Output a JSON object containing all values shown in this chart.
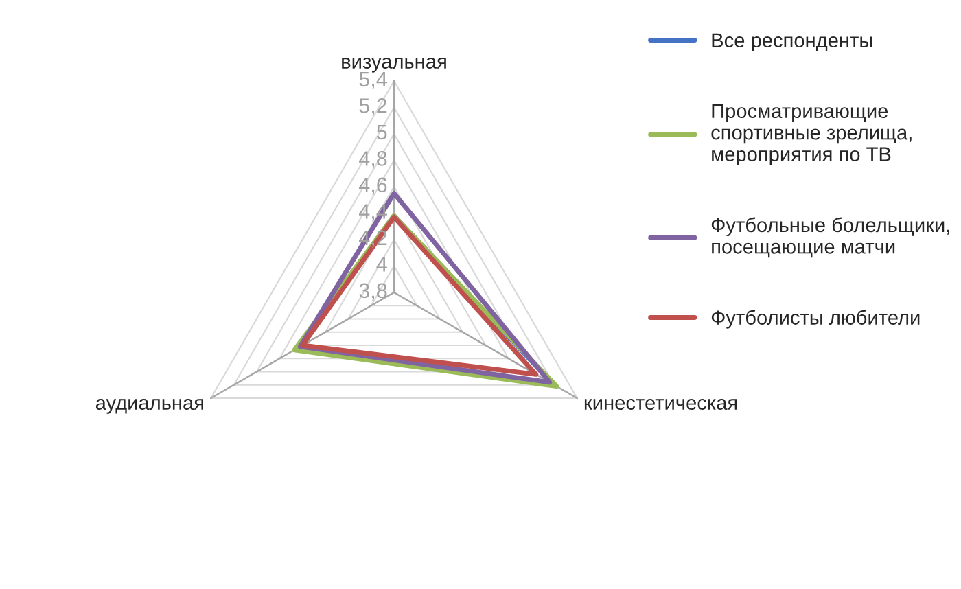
{
  "chart_data": {
    "type": "radar",
    "categories": [
      "визуальная",
      "кинестетическая",
      "аудиальная"
    ],
    "ylim": [
      3.8,
      5.4
    ],
    "yticks": [
      {
        "value": 3.8,
        "label": "3,8"
      },
      {
        "value": 4.0,
        "label": "4"
      },
      {
        "value": 4.2,
        "label": "4,2"
      },
      {
        "value": 4.4,
        "label": "4,4"
      },
      {
        "value": 4.6,
        "label": "4,6"
      },
      {
        "value": 4.8,
        "label": "4,8"
      },
      {
        "value": 5.0,
        "label": "5"
      },
      {
        "value": 5.2,
        "label": "5,2"
      },
      {
        "value": 5.4,
        "label": "5,4"
      }
    ],
    "grid": true,
    "legend": "right",
    "series": [
      {
        "name": "Все респонденты",
        "color": "#4472c4",
        "values": [
          4.38,
          5.2,
          4.64
        ]
      },
      {
        "name": "Просматривающие\nспортивные зрелища,\nмероприятия по ТВ",
        "color": "#9bbb59",
        "values": [
          4.38,
          5.22,
          4.67
        ]
      },
      {
        "name": "Футбольные болельщики,\nпосещающие матчи",
        "color": "#8064a2",
        "values": [
          4.55,
          5.16,
          4.62
        ]
      },
      {
        "name": "Футболисты любители",
        "color": "#c0504d",
        "values": [
          4.37,
          5.04,
          4.6
        ]
      }
    ]
  }
}
